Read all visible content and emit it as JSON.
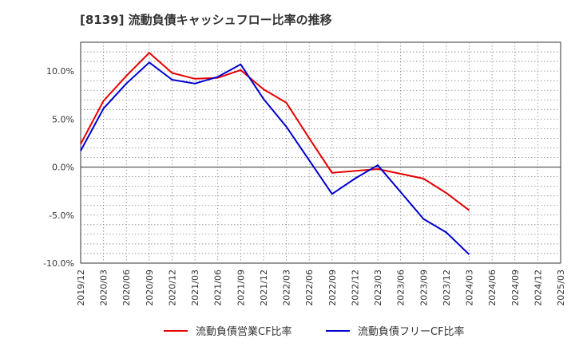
{
  "chart_data": {
    "type": "line",
    "title": "[8139]  流動負債キャッシュフロー比率の推移",
    "x_ticks": [
      "2019/12",
      "2020/03",
      "2020/06",
      "2020/09",
      "2020/12",
      "2021/03",
      "2021/06",
      "2021/09",
      "2021/12",
      "2022/03",
      "2022/06",
      "2022/09",
      "2022/12",
      "2023/03",
      "2023/06",
      "2023/09",
      "2023/12",
      "2024/03",
      "2024/06",
      "2024/09",
      "2024/12",
      "2025/03"
    ],
    "y_ticks": [
      "10.0%",
      "5.0%",
      "0.0%",
      "-5.0%",
      "-10.0%"
    ],
    "y_tick_values": [
      10,
      5,
      0,
      -5,
      -10
    ],
    "ylim": [
      -10,
      13
    ],
    "grid": true,
    "legend_position": "bottom",
    "series": [
      {
        "name": "流動負債営業CF比率",
        "color": "#e60000",
        "x": [
          "2019/12",
          "2020/03",
          "2020/06",
          "2020/09",
          "2020/12",
          "2021/03",
          "2021/06",
          "2021/09",
          "2021/12",
          "2022/03",
          "2022/06",
          "2022/09",
          "2022/12",
          "2023/03",
          "2023/06",
          "2023/09",
          "2023/12",
          "2024/03"
        ],
        "values": [
          2.4,
          6.9,
          9.5,
          11.9,
          9.8,
          9.2,
          9.3,
          10.1,
          8.1,
          6.7,
          3.0,
          -0.6,
          -0.4,
          -0.2,
          -0.7,
          -1.2,
          -2.7,
          -4.5
        ]
      },
      {
        "name": "流動負債フリーCF比率",
        "color": "#0000cd",
        "x": [
          "2019/12",
          "2020/03",
          "2020/06",
          "2020/09",
          "2020/12",
          "2021/03",
          "2021/06",
          "2021/09",
          "2021/12",
          "2022/03",
          "2022/06",
          "2022/09",
          "2022/12",
          "2023/03",
          "2023/06",
          "2023/09",
          "2023/12",
          "2024/03"
        ],
        "values": [
          1.7,
          6.1,
          8.7,
          10.9,
          9.1,
          8.7,
          9.4,
          10.7,
          7.1,
          4.2,
          0.7,
          -2.8,
          -1.2,
          0.2,
          -2.6,
          -5.4,
          -6.8,
          -9.1
        ]
      }
    ]
  }
}
